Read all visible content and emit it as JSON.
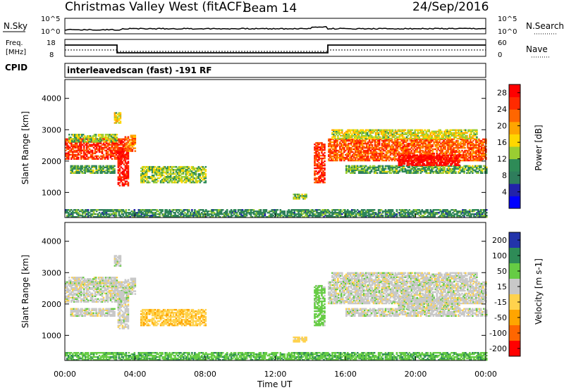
{
  "header": {
    "title": "Christmas Valley West (fitACF)",
    "beam": "Beam 14",
    "date": "24/Sep/2016"
  },
  "panels": {
    "nsky": {
      "label": "N.Sky",
      "ticks": [
        "10^5",
        "10^0"
      ],
      "right_ticks": [
        "10^5",
        "10^0"
      ],
      "right_label": "N.Search"
    },
    "freq": {
      "label_line1": "Freq.",
      "label_line2": "[MHz]",
      "ticks": [
        "18",
        "8"
      ],
      "right_ticks": [
        "60",
        "0"
      ],
      "right_label": "Nave"
    },
    "cpid": {
      "label": "CPID",
      "text": "interleavedscan (fast) -191 RF"
    }
  },
  "colors": {
    "power": [
      "#0000ff",
      "#2222aa",
      "#2e7d5c",
      "#2e8b57",
      "#9acd32",
      "#ffd700",
      "#ffa500",
      "#ff6600",
      "#ff2a00",
      "#ff0000"
    ],
    "velocity": [
      "#ff0000",
      "#ff6600",
      "#ffa500",
      "#ffd24d",
      "#c8c8c8",
      "#66cc44",
      "#2e8b57",
      "#2233aa"
    ]
  },
  "chart_data": [
    {
      "type": "heatmap",
      "name_ref": "power",
      "ylabel": "Slant Range [km]",
      "yticks": [
        1000,
        2000,
        3000,
        4000
      ],
      "ylim": [
        200,
        4600
      ],
      "colorbar": {
        "label": "Power [dB]",
        "ticks": [
          "4",
          "8",
          "12",
          "16",
          "20",
          "24",
          "28"
        ],
        "range": [
          0,
          30
        ]
      }
    },
    {
      "type": "heatmap",
      "name_ref": "velocity",
      "ylabel": "Slant Range [km]",
      "yticks": [
        1000,
        2000,
        3000,
        4000
      ],
      "ylim": [
        200,
        4600
      ],
      "xlabel": "Time UT",
      "xticks": [
        "00:00",
        "04:00",
        "08:00",
        "12:00",
        "16:00",
        "20:00",
        "00:00"
      ],
      "colorbar": {
        "label": "Velocity [m s-1]",
        "ticks": [
          "200",
          "100",
          "50",
          "15",
          "-15",
          "-50",
          "-100",
          "-200"
        ]
      }
    }
  ],
  "bands": [
    {
      "t0": 0.0,
      "t1": 3.5,
      "r0": 2050,
      "r1": 2700,
      "p": 24,
      "v": 0
    },
    {
      "t0": 0.2,
      "t1": 3.0,
      "r0": 2600,
      "r1": 2850,
      "p": 12,
      "v": 0
    },
    {
      "t0": 0.3,
      "t1": 2.8,
      "r0": 1600,
      "r1": 1850,
      "p": 10,
      "v": 0
    },
    {
      "t0": 2.8,
      "t1": 3.2,
      "r0": 3200,
      "r1": 3550,
      "p": 14,
      "v": 0
    },
    {
      "t0": 3.0,
      "t1": 3.6,
      "r0": 1200,
      "r1": 2400,
      "p": 26,
      "v": 0
    },
    {
      "t0": 3.4,
      "t1": 4.0,
      "r0": 2300,
      "r1": 2800,
      "p": 20,
      "v": 0
    },
    {
      "t0": 4.3,
      "t1": 8.0,
      "r0": 1300,
      "r1": 1800,
      "p": 12,
      "v": -40
    },
    {
      "t0": 13.0,
      "t1": 13.8,
      "r0": 780,
      "r1": 950,
      "p": 12,
      "v": -30
    },
    {
      "t0": 14.2,
      "t1": 14.8,
      "r0": 1300,
      "r1": 2600,
      "p": 24,
      "v": 30
    },
    {
      "t0": 15.0,
      "t1": 24.0,
      "r0": 2000,
      "r1": 2700,
      "p": 22,
      "v": 0
    },
    {
      "t0": 15.2,
      "t1": 23.5,
      "r0": 2700,
      "r1": 3000,
      "p": 14,
      "v": 0
    },
    {
      "t0": 16.0,
      "t1": 24.0,
      "r0": 1600,
      "r1": 1850,
      "p": 10,
      "v": 0
    },
    {
      "t0": 19.0,
      "t1": 22.5,
      "r0": 1850,
      "r1": 2200,
      "p": 27,
      "v": 0
    },
    {
      "t0": 0.0,
      "t1": 24.0,
      "r0": 200,
      "r1": 450,
      "p": 8,
      "v": 40
    }
  ]
}
